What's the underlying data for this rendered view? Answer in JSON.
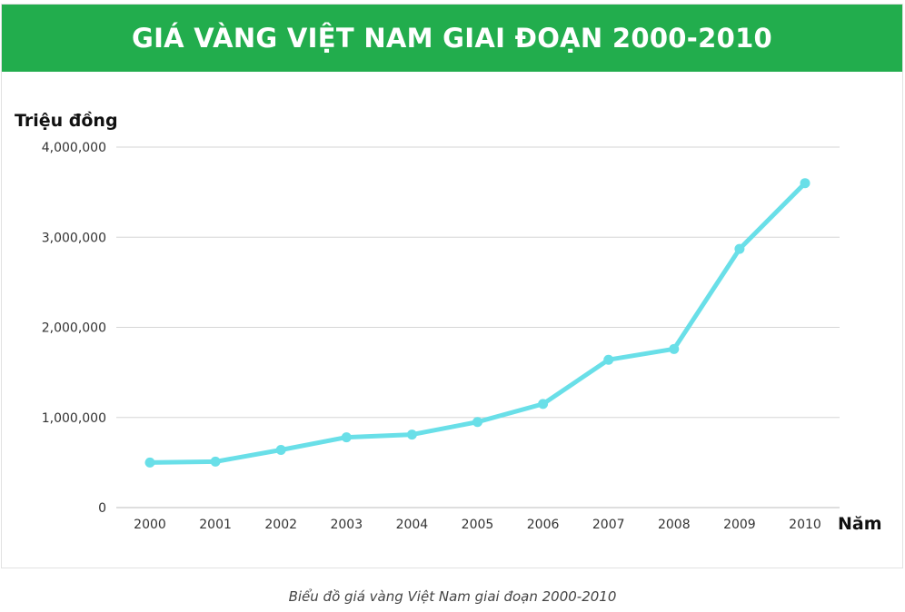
{
  "chart_data": {
    "type": "line",
    "title": "GIÁ VÀNG VIỆT NAM GIAI ĐOẠN 2000-2010",
    "ylabel": "Triệu đồng",
    "xlabel": "Năm",
    "categories": [
      "2000",
      "2001",
      "2002",
      "2003",
      "2004",
      "2005",
      "2006",
      "2007",
      "2008",
      "2009",
      "2010"
    ],
    "values": [
      500000,
      510000,
      640000,
      780000,
      810000,
      950000,
      1150000,
      1640000,
      1760000,
      2870000,
      3600000
    ],
    "yticks": [
      0,
      1000000,
      2000000,
      3000000,
      4000000
    ],
    "ytick_labels": [
      "0",
      "1,000,000",
      "2,000,000",
      "3,000,000",
      "4,000,000"
    ],
    "ylim": [
      0,
      4000000
    ],
    "grid": true,
    "legend": "none",
    "line_color": "#69dfe8",
    "header_color": "#22ad4d"
  },
  "caption": "Biểu đồ giá vàng Việt Nam giai đoạn 2000-2010"
}
